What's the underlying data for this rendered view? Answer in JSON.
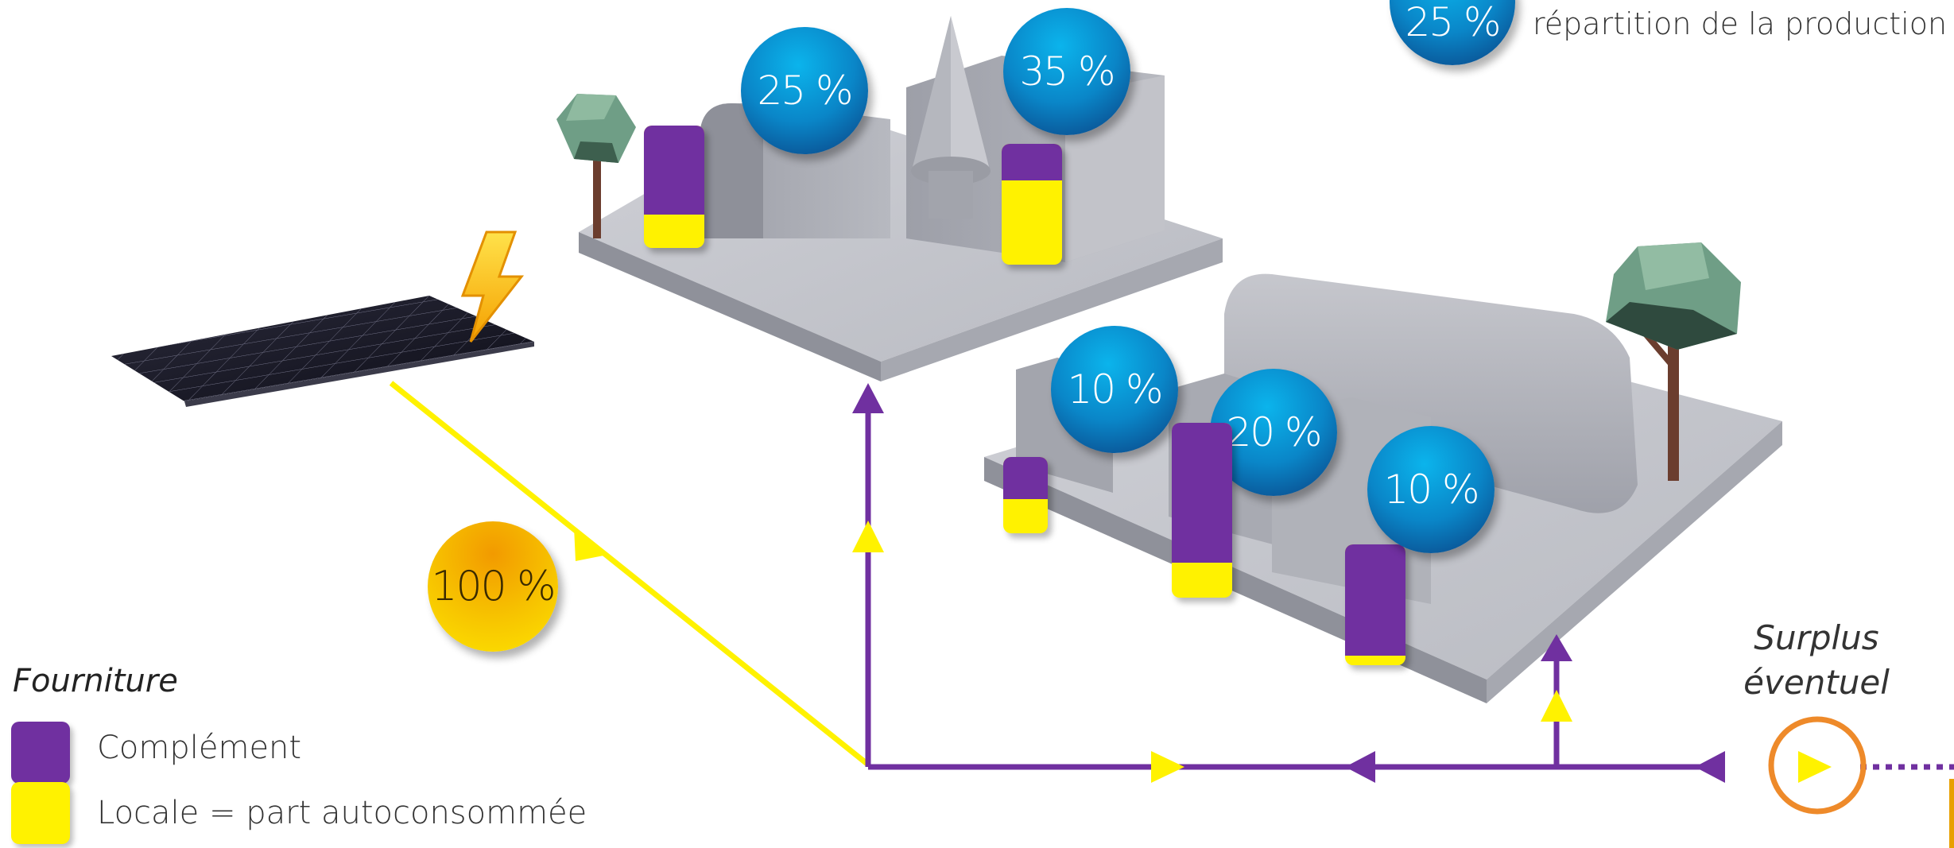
{
  "key": {
    "sample_percent": "25 %",
    "description": "répartition de la production"
  },
  "production": {
    "percent": "100 %"
  },
  "consumers": [
    {
      "label": "25 %",
      "local_share": 0.27
    },
    {
      "label": "35 %",
      "local_share": 0.7
    },
    {
      "label": "10 %",
      "local_share": 0.45
    },
    {
      "label": "20 %",
      "local_share": 0.2
    },
    {
      "label": "10 %",
      "local_share": 0.08
    }
  ],
  "legend": {
    "title": "Fourniture",
    "items": [
      {
        "label": "Complément",
        "color": "#7030a0"
      },
      {
        "label": "Locale = part autoconsommée",
        "color": "#fff200"
      }
    ]
  },
  "surplus": {
    "line1": "Surplus",
    "line2": "éventuel"
  },
  "colors": {
    "grid": "#7030a0",
    "local": "#fff200",
    "surplus_ring": "#ee8a2a",
    "ground": "#c4c6cc",
    "building": "#a9abb3"
  },
  "icons": {
    "production": "solar-panel-icon",
    "energy": "lightning-bolt-icon",
    "trees": "tree-icon"
  }
}
